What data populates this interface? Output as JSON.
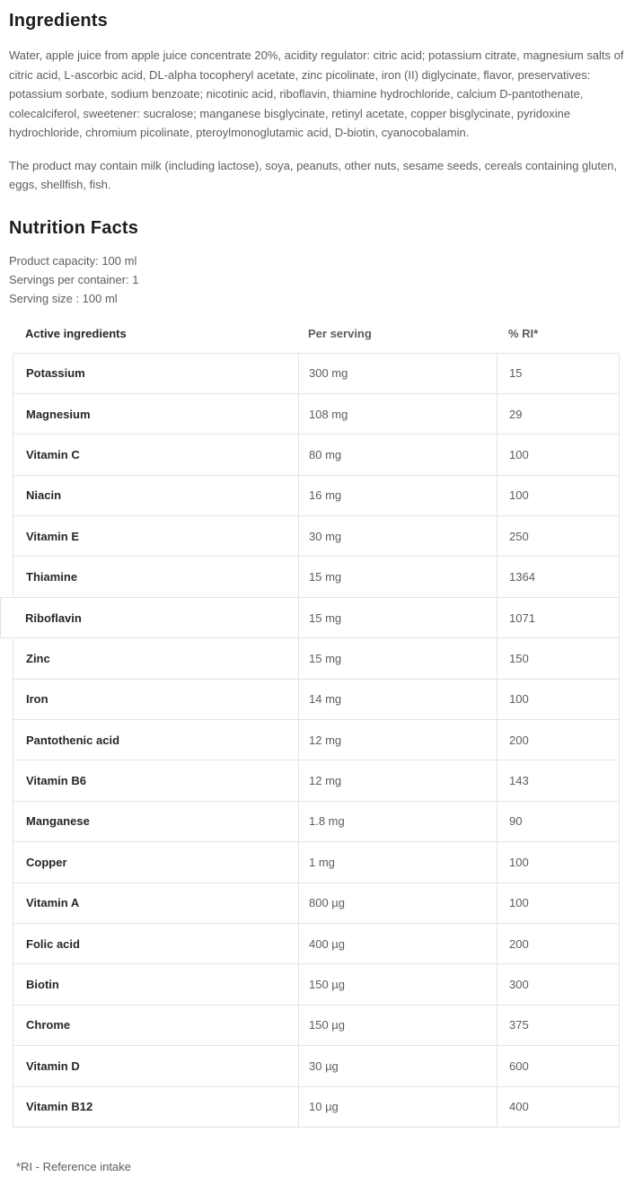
{
  "page": {
    "ingredients": {
      "heading": "Ingredients",
      "composition": "Water, apple juice from apple juice concentrate 20%, acidity regulator: citric acid; potassium citrate, magnesium salts of citric acid, L-ascorbic acid, DL-alpha tocopheryl acetate, zinc picolinate, iron (II) diglycinate, flavor, preservatives: potassium sorbate, sodium benzoate; nicotinic acid, riboflavin, thiamine hydrochloride, calcium D-pantothenate, colecalciferol, sweetener: sucralose; manganese bisglycinate, retinyl acetate, copper bisglycinate, pyridoxine hydrochloride, chromium picolinate, pteroylmonoglutamic acid, D-biotin, cyanocobalamin.",
      "allergen_notice": "The product may contain milk (including lactose), soya, peanuts, other nuts, sesame seeds, cereals containing gluten, eggs, shellfish, fish."
    },
    "nutrition": {
      "heading": "Nutrition Facts",
      "product_capacity": "Product capacity: 100 ml",
      "servings_per_container": "Servings per container: 1",
      "serving_size": "Serving size : 100 ml",
      "table": {
        "columns": [
          "Active ingredients",
          "Per serving",
          "% RI*"
        ],
        "rows": [
          {
            "name": "Potassium",
            "per_serving": "300 mg",
            "ri_percent": "15"
          },
          {
            "name": "Magnesium",
            "per_serving": "108 mg",
            "ri_percent": "29"
          },
          {
            "name": "Vitamin C",
            "per_serving": "80 mg",
            "ri_percent": "100"
          },
          {
            "name": "Niacin",
            "per_serving": "16 mg",
            "ri_percent": "100"
          },
          {
            "name": "Vitamin E",
            "per_serving": "30 mg",
            "ri_percent": "250"
          },
          {
            "name": "Thiamine",
            "per_serving": "15 mg",
            "ri_percent": "1364"
          },
          {
            "name": "Riboflavin",
            "per_serving": "15 mg",
            "ri_percent": "1071"
          },
          {
            "name": "Zinc",
            "per_serving": "15 mg",
            "ri_percent": "150"
          },
          {
            "name": "Iron",
            "per_serving": "14 mg",
            "ri_percent": "100"
          },
          {
            "name": "Pantothenic acid",
            "per_serving": "12 mg",
            "ri_percent": "200"
          },
          {
            "name": "Vitamin B6",
            "per_serving": "12 mg",
            "ri_percent": "143"
          },
          {
            "name": "Manganese",
            "per_serving": "1.8 mg",
            "ri_percent": "90"
          },
          {
            "name": "Copper",
            "per_serving": "1 mg",
            "ri_percent": "100"
          },
          {
            "name": "Vitamin A",
            "per_serving": "800 µg",
            "ri_percent": "100"
          },
          {
            "name": "Folic acid",
            "per_serving": "400 µg",
            "ri_percent": "200"
          },
          {
            "name": "Biotin",
            "per_serving": "150 µg",
            "ri_percent": "300"
          },
          {
            "name": "Chrome",
            "per_serving": "150 µg",
            "ri_percent": "375"
          },
          {
            "name": "Vitamin D",
            "per_serving": "30 µg",
            "ri_percent": "600"
          },
          {
            "name": "Vitamin B12",
            "per_serving": "10 µg",
            "ri_percent": "400"
          }
        ]
      },
      "footnote": "*RI - Reference intake"
    }
  }
}
